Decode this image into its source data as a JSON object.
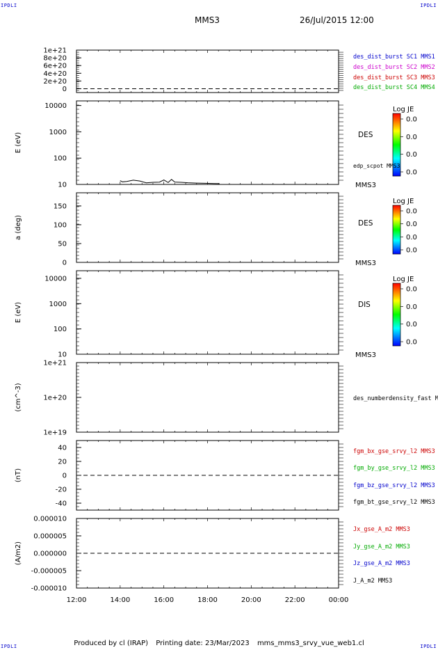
{
  "corner_labels": {
    "top_left": "IPDLI",
    "top_right": "IPDLI",
    "bottom_left": "IPDLI",
    "bottom_right": "IPDLI"
  },
  "header": {
    "spacecraft": "MMS3",
    "datetime": "26/Jul/2015 12:00"
  },
  "footer": {
    "produced_by": "Produced by cl (IRAP)",
    "printing_date": "Printing date: 23/Mar/2023",
    "product": "mms_mms3_srvy_vue_web1.cl"
  },
  "colors": {
    "blue": "#0000cc",
    "magenta": "#cc00cc",
    "red": "#cc0000",
    "green": "#00aa00",
    "black": "#000000"
  },
  "chart_data": [
    {
      "id": "p1",
      "type": "line",
      "ylim": [
        -100000000000000000000,
        1000000000000000000000
      ],
      "yscale": "linear",
      "yticks": [
        "1e+21",
        "8e+20",
        "6e+20",
        "4e+20",
        "2e+20",
        "0"
      ],
      "ytick_values": [
        1e+21,
        8e+20,
        6e+20,
        4e+20,
        2e+20,
        0
      ],
      "ylabel": "",
      "zero_line": true,
      "series": [
        {
          "name": "des_dist_burst SC1 MMS1",
          "color": "#0000cc"
        },
        {
          "name": "des_dist_burst SC2 MMS2",
          "color": "#cc00cc"
        },
        {
          "name": "des_dist_burst SC3 MMS3",
          "color": "#cc0000"
        },
        {
          "name": "des_dist_burst SC4 MMS4",
          "color": "#00aa00"
        }
      ]
    },
    {
      "id": "p2",
      "type": "heatmap",
      "ylabel": "E (eV)",
      "yscale": "log",
      "ylim": [
        10,
        15000
      ],
      "yticks": [
        "10000",
        "1000",
        "100",
        "10"
      ],
      "ytick_values": [
        10000,
        1000,
        100,
        10
      ],
      "instrument": "DES",
      "spacecraft_tag": "MMS3",
      "overlay_label": "edp_scpot MMS3",
      "colorbar": {
        "title": "Log JE",
        "ticks": [
          "0.0",
          "0.0",
          "0.0",
          "0.0"
        ]
      },
      "overlay": {
        "x_hours": [
          14.0,
          14.1,
          14.3,
          14.6,
          14.9,
          15.2,
          15.5,
          15.8,
          16.0,
          16.2,
          16.35,
          16.5,
          16.8,
          17.1,
          17.5,
          17.9,
          18.3,
          18.55
        ],
        "y": [
          14,
          12.5,
          13,
          14.5,
          13.5,
          11.5,
          12,
          12.2,
          14.8,
          11.8,
          15.5,
          12.3,
          12,
          11.6,
          11.2,
          11,
          10.8,
          10.7
        ]
      }
    },
    {
      "id": "p3",
      "type": "heatmap",
      "ylabel": "a (deg)",
      "yscale": "linear",
      "ylim": [
        0,
        185
      ],
      "yticks": [
        "150",
        "100",
        "50",
        "0"
      ],
      "ytick_values": [
        150,
        100,
        50,
        0
      ],
      "instrument": "DES",
      "spacecraft_tag": "MMS3",
      "colorbar": {
        "title": "Log JE",
        "ticks": [
          "0.0",
          "0.0",
          "0.0",
          "0.0"
        ]
      }
    },
    {
      "id": "p4",
      "type": "heatmap",
      "ylabel": "E (eV)",
      "yscale": "log",
      "ylim": [
        10,
        20000
      ],
      "yticks": [
        "10000",
        "1000",
        "100",
        "10"
      ],
      "ytick_values": [
        10000,
        1000,
        100,
        10
      ],
      "instrument": "DIS",
      "spacecraft_tag": "MMS3",
      "colorbar": {
        "title": "Log JE",
        "ticks": [
          "0.0",
          "0.0",
          "0.0",
          "0.0"
        ]
      }
    },
    {
      "id": "p5",
      "type": "line",
      "ylabel": "(cm^-3)",
      "yscale": "log",
      "ylim": [
        1e+19,
        1e+21
      ],
      "yticks": [
        "1e+21",
        "1e+20",
        "1e+19"
      ],
      "ytick_values": [
        1e+21,
        1e+20,
        1e+19
      ],
      "series": [
        {
          "name": "des_numberdensity_fast M",
          "color": "#000000"
        }
      ]
    },
    {
      "id": "p6",
      "type": "line",
      "ylabel": "(nT)",
      "yscale": "linear",
      "ylim": [
        -50,
        50
      ],
      "yticks": [
        "40",
        "20",
        "0",
        "-20",
        "-40"
      ],
      "ytick_values": [
        40,
        20,
        0,
        -20,
        -40
      ],
      "zero_line": true,
      "series": [
        {
          "name": "fgm_bx_gse_srvy_l2 MMS3",
          "color": "#cc0000"
        },
        {
          "name": "fgm_by_gse_srvy_l2 MMS3",
          "color": "#00aa00"
        },
        {
          "name": "fgm_bz_gse_srvy_l2 MMS3",
          "color": "#0000cc"
        },
        {
          "name": "fgm_bt_gse_srvy_l2 MMS3",
          "color": "#000000"
        }
      ]
    },
    {
      "id": "p7",
      "type": "line",
      "ylabel": "(A/m2)",
      "yscale": "linear",
      "ylim": [
        -1e-05,
        1e-05
      ],
      "yticks": [
        "0.000010",
        "0.000005",
        "0.000000",
        "-0.000005",
        "-0.000010"
      ],
      "ytick_values": [
        1e-05,
        5e-06,
        0,
        -5e-06,
        -1e-05
      ],
      "zero_line": true,
      "series": [
        {
          "name": "Jx_gse_A_m2 MMS3",
          "color": "#cc0000"
        },
        {
          "name": "Jy_gse_A_m2 MMS3",
          "color": "#00aa00"
        },
        {
          "name": "Jz_gse_A_m2 MMS3",
          "color": "#0000cc"
        },
        {
          "name": "J_A_m2 MMS3",
          "color": "#000000"
        }
      ]
    }
  ],
  "x_axis": {
    "ticks": [
      "12:00",
      "14:00",
      "16:00",
      "18:00",
      "20:00",
      "22:00",
      "00:00"
    ],
    "tick_hours": [
      12,
      14,
      16,
      18,
      20,
      22,
      24
    ],
    "range_hours": [
      12,
      24
    ]
  }
}
